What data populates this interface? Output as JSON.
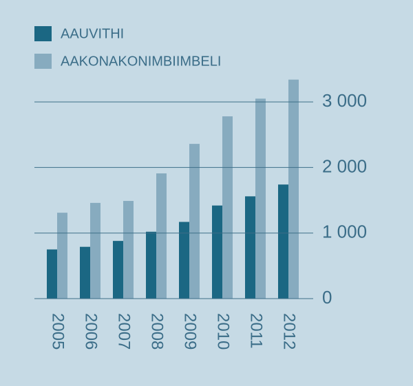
{
  "chart_data": {
    "type": "bar",
    "categories": [
      "2005",
      "2006",
      "2007",
      "2008",
      "2009",
      "2010",
      "2011",
      "2012"
    ],
    "series": [
      {
        "name": "AAUVITHI",
        "color": "#1b6783",
        "values": [
          750,
          790,
          880,
          1020,
          1170,
          1420,
          1560,
          1740
        ]
      },
      {
        "name": "AAKONAKONIMBIIMBELI",
        "color": "#87abbf",
        "values": [
          1310,
          1460,
          1490,
          1910,
          2360,
          2780,
          3050,
          3340
        ]
      }
    ],
    "ylim": [
      0,
      3400
    ],
    "yticks": [
      0,
      {
        "value": 1000,
        "label": "1 000"
      },
      {
        "value": 2000,
        "label": "2 000"
      },
      {
        "value": 3000,
        "label": "3 000"
      }
    ],
    "grid": true
  }
}
